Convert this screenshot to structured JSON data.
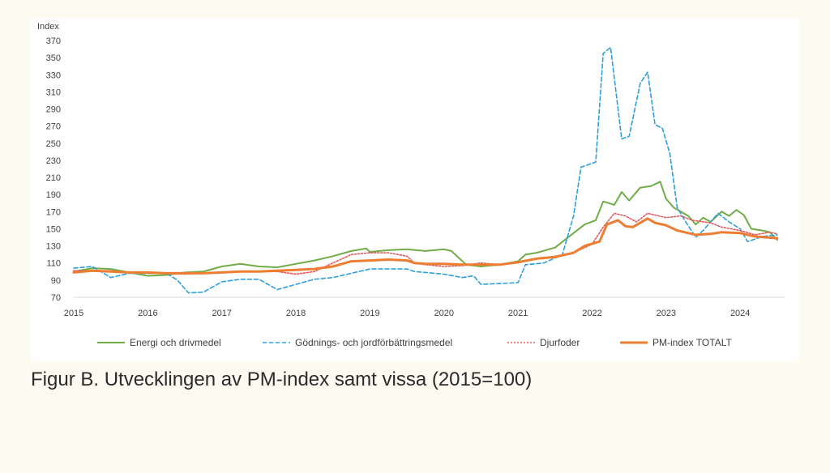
{
  "caption": "Figur B. Utvecklingen av PM-index samt vissa (2015=100)",
  "chart_data": {
    "type": "line",
    "ylabel": "Index",
    "xlabel": "",
    "ylim": [
      70,
      370
    ],
    "xlim": [
      2015,
      2024.6
    ],
    "y_ticks": [
      70,
      90,
      110,
      130,
      150,
      170,
      190,
      210,
      230,
      250,
      270,
      290,
      310,
      330,
      350,
      370
    ],
    "x_ticks": [
      "2015",
      "2016",
      "2017",
      "2018",
      "2019",
      "2020",
      "2021",
      "2022",
      "2023",
      "2024"
    ],
    "grid": false,
    "legend_position": "bottom",
    "series": [
      {
        "name": "Energi och drivmedel",
        "color": "#70ad47",
        "style": "solid",
        "points": [
          [
            2015,
            100
          ],
          [
            2015.25,
            104
          ],
          [
            2015.5,
            103
          ],
          [
            2015.75,
            99
          ],
          [
            2016,
            95
          ],
          [
            2016.25,
            96
          ],
          [
            2016.5,
            99
          ],
          [
            2016.75,
            100
          ],
          [
            2017,
            106
          ],
          [
            2017.25,
            109
          ],
          [
            2017.5,
            106
          ],
          [
            2017.75,
            105
          ],
          [
            2018,
            109
          ],
          [
            2018.25,
            113
          ],
          [
            2018.5,
            118
          ],
          [
            2018.75,
            124
          ],
          [
            2018.95,
            127
          ],
          [
            2019,
            123
          ],
          [
            2019.25,
            125
          ],
          [
            2019.5,
            126
          ],
          [
            2019.75,
            124
          ],
          [
            2020,
            126
          ],
          [
            2020.1,
            124
          ],
          [
            2020.3,
            108
          ],
          [
            2020.5,
            106
          ],
          [
            2020.75,
            108
          ],
          [
            2021,
            112
          ],
          [
            2021.1,
            120
          ],
          [
            2021.25,
            122
          ],
          [
            2021.5,
            128
          ],
          [
            2021.75,
            145
          ],
          [
            2021.9,
            155
          ],
          [
            2022.05,
            160
          ],
          [
            2022.15,
            182
          ],
          [
            2022.3,
            178
          ],
          [
            2022.4,
            193
          ],
          [
            2022.5,
            183
          ],
          [
            2022.65,
            198
          ],
          [
            2022.8,
            200
          ],
          [
            2022.92,
            205
          ],
          [
            2023,
            185
          ],
          [
            2023.1,
            175
          ],
          [
            2023.3,
            165
          ],
          [
            2023.4,
            155
          ],
          [
            2023.5,
            163
          ],
          [
            2023.6,
            158
          ],
          [
            2023.75,
            170
          ],
          [
            2023.85,
            165
          ],
          [
            2023.95,
            172
          ],
          [
            2024.05,
            166
          ],
          [
            2024.15,
            150
          ],
          [
            2024.3,
            148
          ],
          [
            2024.4,
            146
          ],
          [
            2024.5,
            137
          ]
        ]
      },
      {
        "name": "Gödnings- och jordförbättringsmedel",
        "color": "#2e9fdc",
        "style": "dashed",
        "points": [
          [
            2015,
            104
          ],
          [
            2015.25,
            106
          ],
          [
            2015.5,
            93
          ],
          [
            2015.75,
            98
          ],
          [
            2016,
            98
          ],
          [
            2016.25,
            98
          ],
          [
            2016.4,
            90
          ],
          [
            2016.55,
            75
          ],
          [
            2016.75,
            76
          ],
          [
            2017,
            88
          ],
          [
            2017.25,
            91
          ],
          [
            2017.5,
            91
          ],
          [
            2017.75,
            79
          ],
          [
            2018,
            85
          ],
          [
            2018.25,
            91
          ],
          [
            2018.5,
            93
          ],
          [
            2018.75,
            98
          ],
          [
            2019,
            103
          ],
          [
            2019.25,
            103
          ],
          [
            2019.5,
            103
          ],
          [
            2019.6,
            100
          ],
          [
            2019.75,
            99
          ],
          [
            2020,
            97
          ],
          [
            2020.25,
            93
          ],
          [
            2020.4,
            95
          ],
          [
            2020.5,
            85
          ],
          [
            2020.75,
            86
          ],
          [
            2021,
            87
          ],
          [
            2021.1,
            108
          ],
          [
            2021.35,
            110
          ],
          [
            2021.6,
            120
          ],
          [
            2021.75,
            165
          ],
          [
            2021.85,
            222
          ],
          [
            2022.05,
            228
          ],
          [
            2022.15,
            355
          ],
          [
            2022.25,
            362
          ],
          [
            2022.4,
            255
          ],
          [
            2022.5,
            258
          ],
          [
            2022.65,
            320
          ],
          [
            2022.75,
            333
          ],
          [
            2022.85,
            272
          ],
          [
            2022.95,
            267
          ],
          [
            2023.05,
            238
          ],
          [
            2023.15,
            175
          ],
          [
            2023.25,
            160
          ],
          [
            2023.4,
            140
          ],
          [
            2023.5,
            148
          ],
          [
            2023.7,
            168
          ],
          [
            2023.85,
            158
          ],
          [
            2024,
            150
          ],
          [
            2024.1,
            135
          ],
          [
            2024.3,
            141
          ],
          [
            2024.5,
            143
          ]
        ]
      },
      {
        "name": "Djurfoder",
        "color": "#e05c5c",
        "style": "dotted",
        "points": [
          [
            2015,
            101
          ],
          [
            2015.25,
            101
          ],
          [
            2015.5,
            101
          ],
          [
            2015.75,
            99
          ],
          [
            2016,
            98
          ],
          [
            2016.25,
            98
          ],
          [
            2016.5,
            97
          ],
          [
            2016.75,
            98
          ],
          [
            2017,
            99
          ],
          [
            2017.25,
            100
          ],
          [
            2017.5,
            100
          ],
          [
            2017.75,
            100
          ],
          [
            2018,
            97
          ],
          [
            2018.25,
            100
          ],
          [
            2018.5,
            110
          ],
          [
            2018.75,
            120
          ],
          [
            2019,
            122
          ],
          [
            2019.25,
            122
          ],
          [
            2019.5,
            118
          ],
          [
            2019.6,
            110
          ],
          [
            2019.75,
            108
          ],
          [
            2020,
            106
          ],
          [
            2020.25,
            107
          ],
          [
            2020.5,
            110
          ],
          [
            2020.75,
            108
          ],
          [
            2021,
            110
          ],
          [
            2021.25,
            115
          ],
          [
            2021.5,
            118
          ],
          [
            2021.75,
            122
          ],
          [
            2022,
            132
          ],
          [
            2022.15,
            152
          ],
          [
            2022.3,
            168
          ],
          [
            2022.45,
            165
          ],
          [
            2022.6,
            158
          ],
          [
            2022.75,
            168
          ],
          [
            2022.9,
            165
          ],
          [
            2023,
            163
          ],
          [
            2023.2,
            165
          ],
          [
            2023.35,
            160
          ],
          [
            2023.6,
            157
          ],
          [
            2023.75,
            152
          ],
          [
            2024,
            148
          ],
          [
            2024.2,
            143
          ],
          [
            2024.4,
            146
          ],
          [
            2024.5,
            144
          ]
        ]
      },
      {
        "name": "PM-index TOTALT",
        "color": "#ed7d31",
        "style": "solid-thick",
        "points": [
          [
            2015,
            99
          ],
          [
            2015.25,
            101
          ],
          [
            2015.5,
            100
          ],
          [
            2015.75,
            99
          ],
          [
            2016,
            99
          ],
          [
            2016.25,
            98
          ],
          [
            2016.5,
            98
          ],
          [
            2016.75,
            98
          ],
          [
            2017,
            99
          ],
          [
            2017.25,
            100
          ],
          [
            2017.5,
            100
          ],
          [
            2017.75,
            101
          ],
          [
            2018,
            102
          ],
          [
            2018.25,
            103
          ],
          [
            2018.5,
            106
          ],
          [
            2018.75,
            112
          ],
          [
            2019,
            113
          ],
          [
            2019.25,
            114
          ],
          [
            2019.5,
            113
          ],
          [
            2019.6,
            110
          ],
          [
            2019.75,
            109
          ],
          [
            2020,
            109
          ],
          [
            2020.25,
            108
          ],
          [
            2020.5,
            108
          ],
          [
            2020.75,
            108
          ],
          [
            2021,
            111
          ],
          [
            2021.25,
            115
          ],
          [
            2021.5,
            117
          ],
          [
            2021.75,
            122
          ],
          [
            2021.9,
            130
          ],
          [
            2022.1,
            135
          ],
          [
            2022.2,
            155
          ],
          [
            2022.35,
            160
          ],
          [
            2022.45,
            153
          ],
          [
            2022.55,
            152
          ],
          [
            2022.75,
            162
          ],
          [
            2022.85,
            157
          ],
          [
            2023,
            154
          ],
          [
            2023.15,
            148
          ],
          [
            2023.4,
            143
          ],
          [
            2023.6,
            144
          ],
          [
            2023.75,
            146
          ],
          [
            2024,
            145
          ],
          [
            2024.2,
            141
          ],
          [
            2024.5,
            139
          ]
        ]
      }
    ]
  }
}
